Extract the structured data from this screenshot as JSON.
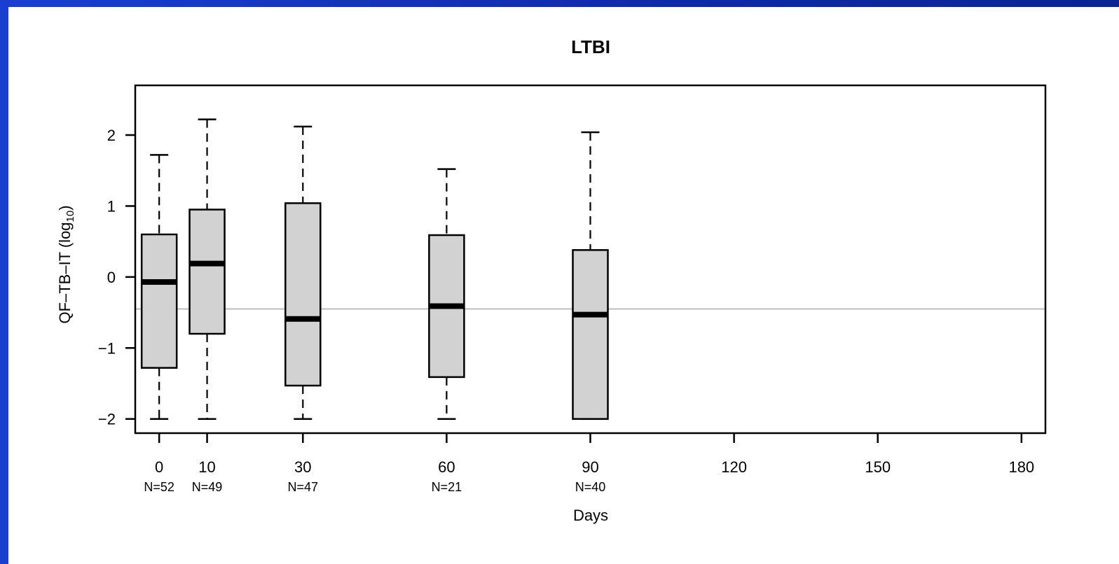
{
  "chart_data": {
    "type": "box",
    "title": "LTBI",
    "xlabel": "Days",
    "ylabel": "QF–TB–IT (log",
    "ylabel_subscript": "10",
    "ylabel_close": ")",
    "xlim": [
      -5,
      185
    ],
    "ylim": [
      -2.2,
      2.7
    ],
    "x_ticks": [
      0,
      10,
      30,
      60,
      90,
      120,
      150,
      180
    ],
    "x_tick_labels": [
      "0",
      "10",
      "30",
      "60",
      "90",
      "120",
      "150",
      "180"
    ],
    "y_ticks": [
      -2,
      -1,
      0,
      1,
      2
    ],
    "y_tick_labels": [
      "−2",
      "−1",
      "0",
      "1",
      "2"
    ],
    "reference_line": -0.45,
    "grid": false,
    "legend": "none",
    "boxes": [
      {
        "x": 0,
        "n_label": "N=52",
        "whisker_low": -2.0,
        "q1": -1.28,
        "median": -0.07,
        "q3": 0.6,
        "whisker_high": 1.72
      },
      {
        "x": 10,
        "n_label": "N=49",
        "whisker_low": -2.0,
        "q1": -0.8,
        "median": 0.19,
        "q3": 0.95,
        "whisker_high": 2.22
      },
      {
        "x": 30,
        "n_label": "N=47",
        "whisker_low": -2.0,
        "q1": -1.53,
        "median": -0.59,
        "q3": 1.04,
        "whisker_high": 2.12
      },
      {
        "x": 60,
        "n_label": "N=21",
        "whisker_low": -2.0,
        "q1": -1.41,
        "median": -0.41,
        "q3": 0.59,
        "whisker_high": 1.52
      },
      {
        "x": 90,
        "n_label": "N=40",
        "whisker_low": -2.0,
        "q1": -2.0,
        "median": -0.53,
        "q3": 0.38,
        "whisker_high": 2.04
      }
    ],
    "colors": {
      "box_fill": "#d2d2d2",
      "box_stroke": "#000000",
      "reference_line": "#bdbdbd"
    }
  }
}
